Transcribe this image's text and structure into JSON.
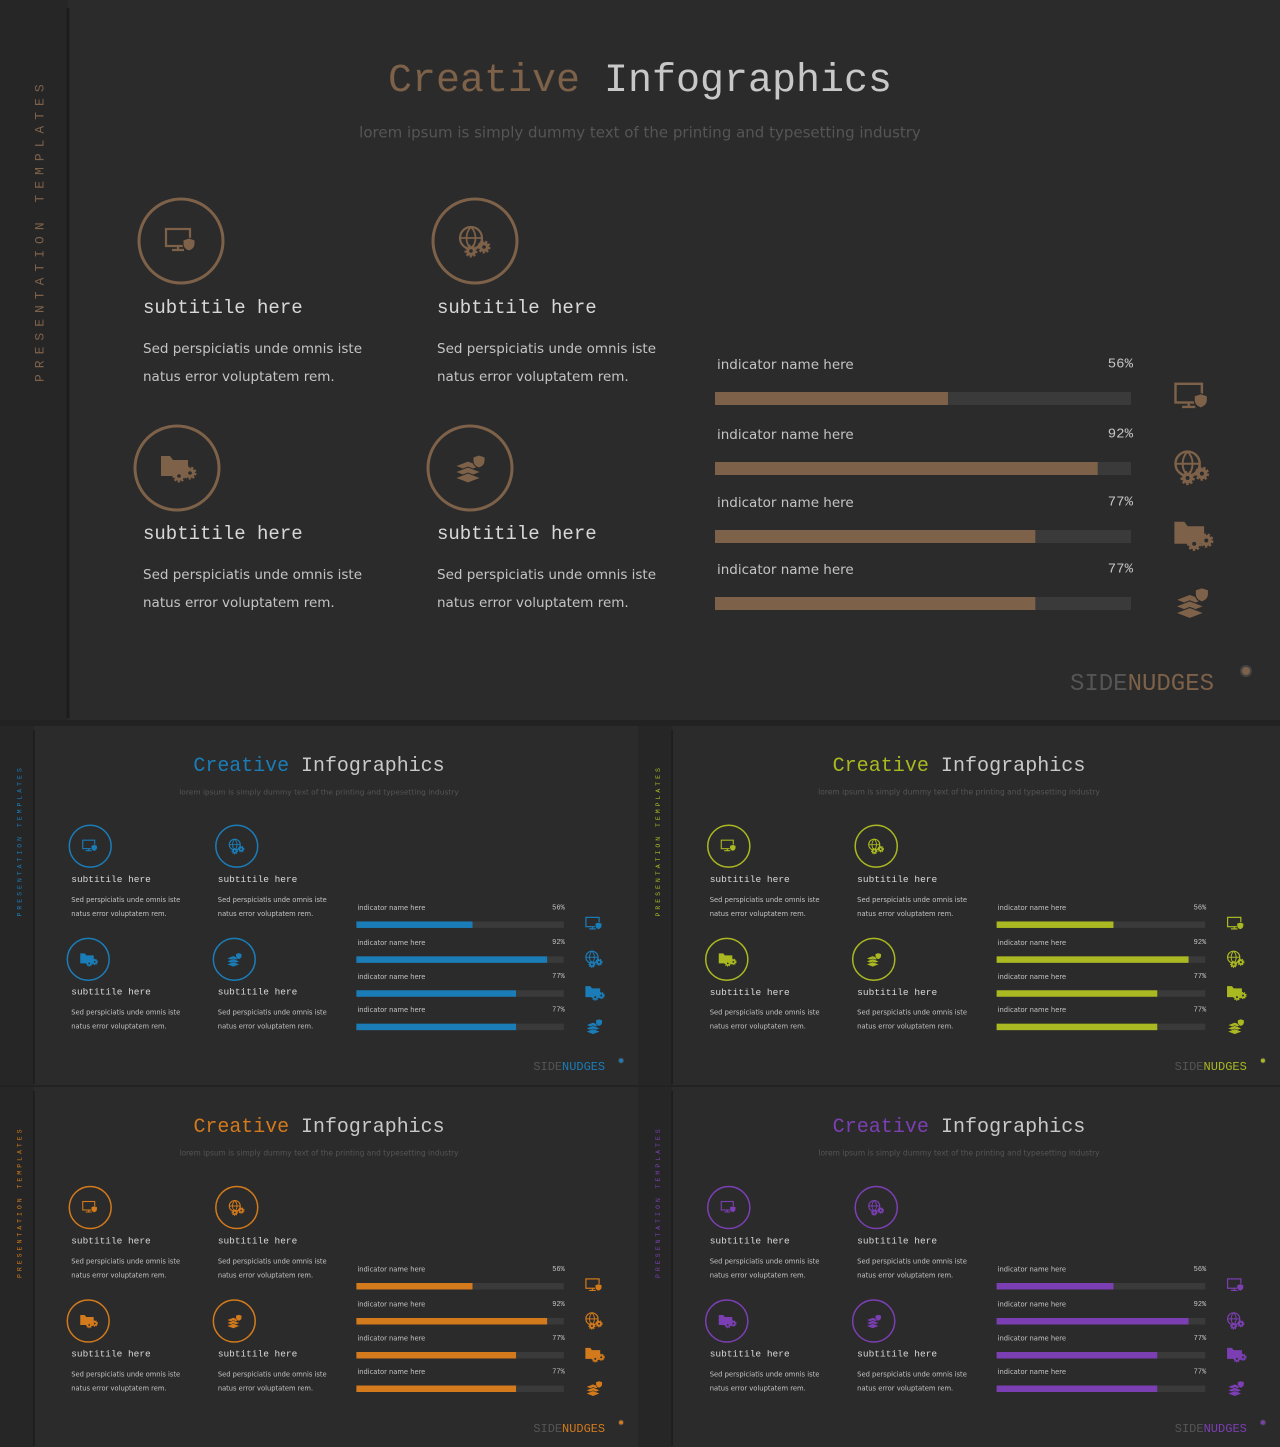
{
  "slide_content": {
    "side_label": "PRESENTATION TEMPLATES",
    "title": {
      "accent": "Creative",
      "rest": "Infographics"
    },
    "subtitle": "lorem ipsum is simply dummy text of the printing and typesetting industry",
    "features": [
      {
        "subtitle": "subtitile here",
        "lines": [
          "Sed perspiciatis unde omnis iste",
          "natus error voluptatem rem."
        ]
      },
      {
        "subtitle": "subtitile here",
        "lines": [
          "Sed perspiciatis unde omnis iste",
          "natus error voluptatem rem."
        ]
      },
      {
        "subtitle": "subtitile here",
        "lines": [
          "Sed perspiciatis unde omnis iste",
          "natus error voluptatem rem."
        ]
      },
      {
        "subtitle": "subtitile here",
        "lines": [
          "Sed perspiciatis unde omnis iste",
          "natus error voluptatem rem."
        ]
      }
    ],
    "indicators": [
      {
        "name": "indicator name here",
        "value": 56,
        "label": "56%"
      },
      {
        "name": "indicator name here",
        "value": 92,
        "label": "92%"
      },
      {
        "name": "indicator name here",
        "value": 77,
        "label": "77%"
      },
      {
        "name": "indicator name here",
        "value": 77,
        "label": "77%"
      }
    ],
    "logo": {
      "dim": "SIDE",
      "accent": "NUDGES"
    }
  },
  "slides": [
    {
      "accent": "#7d6149"
    },
    {
      "accent": "#1b7db8"
    },
    {
      "accent": "#aab821"
    },
    {
      "accent": "#d27a1c"
    },
    {
      "accent": "#7b3fb3"
    }
  ]
}
